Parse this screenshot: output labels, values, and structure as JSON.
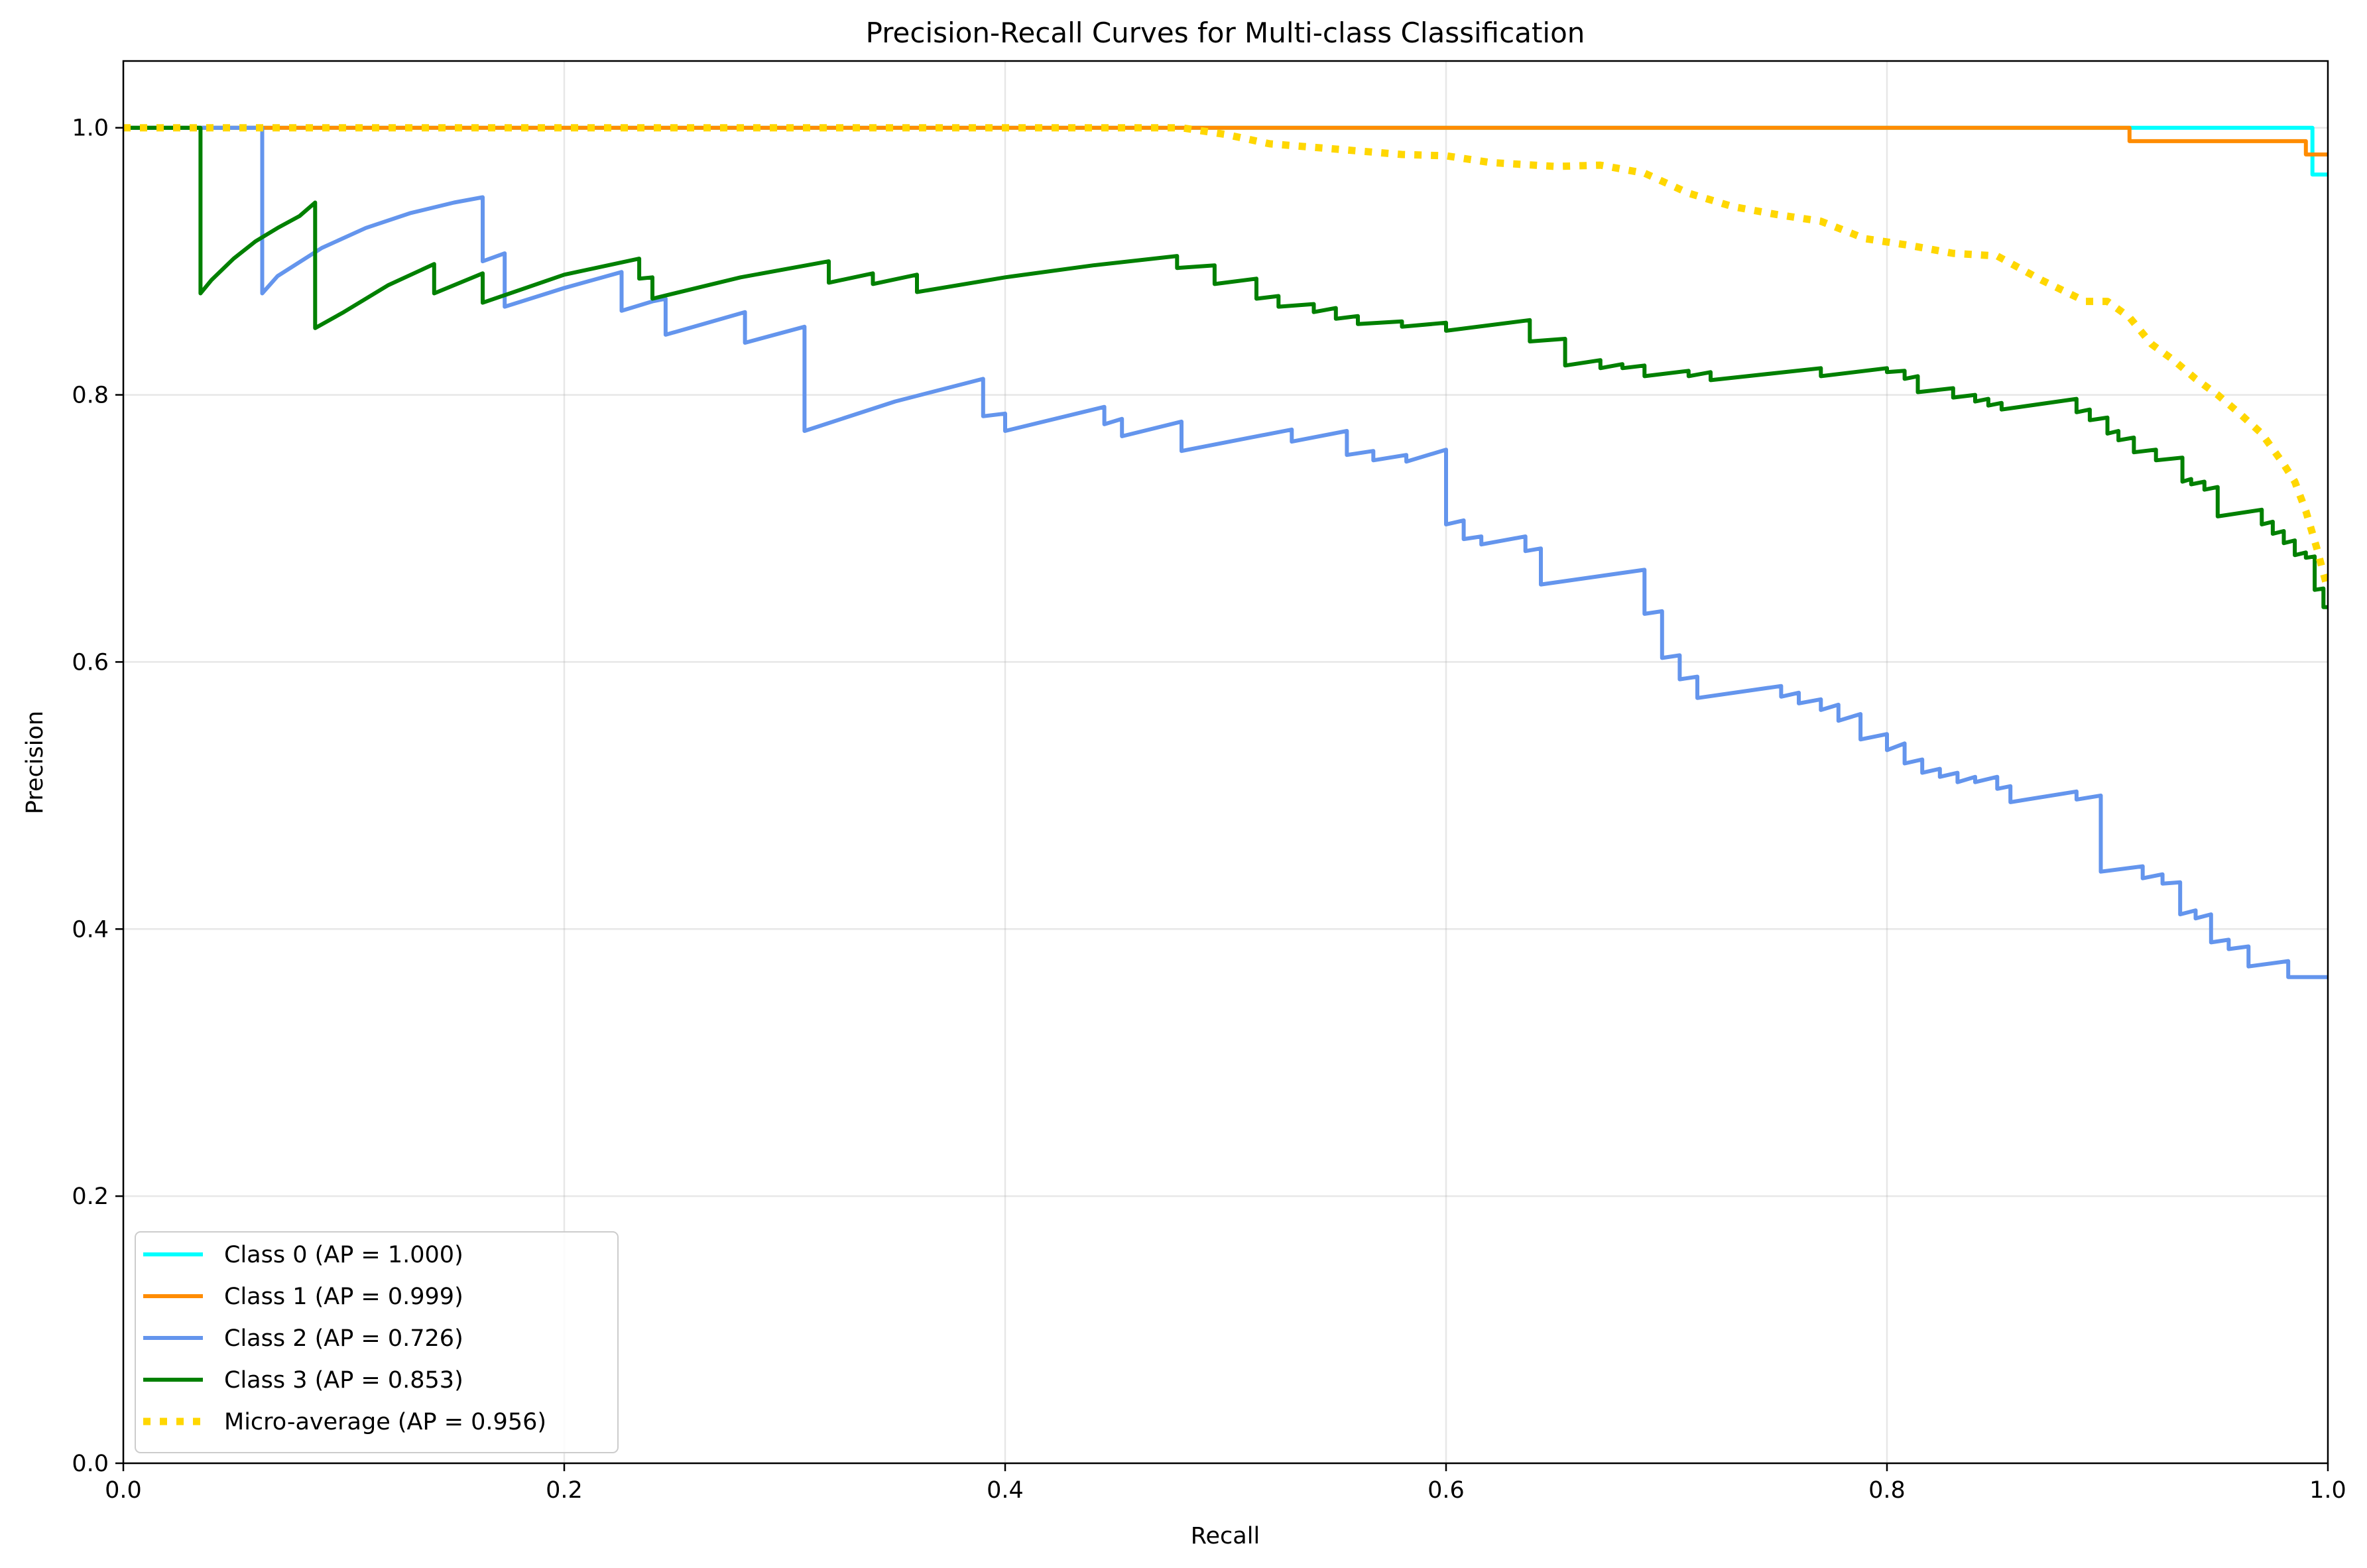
{
  "chart_data": {
    "type": "line",
    "title": "Precision-Recall Curves for Multi-class Classification",
    "xlabel": "Recall",
    "ylabel": "Precision",
    "xlim": [
      0,
      1
    ],
    "ylim": [
      0,
      1.05
    ],
    "x_ticks": [
      {
        "value": 0.0,
        "label": "0.0"
      },
      {
        "value": 0.2,
        "label": "0.2"
      },
      {
        "value": 0.4,
        "label": "0.4"
      },
      {
        "value": 0.6,
        "label": "0.6"
      },
      {
        "value": 0.8,
        "label": "0.8"
      },
      {
        "value": 1.0,
        "label": "1.0"
      }
    ],
    "y_ticks": [
      {
        "value": 0.0,
        "label": "0.0"
      },
      {
        "value": 0.2,
        "label": "0.2"
      },
      {
        "value": 0.4,
        "label": "0.4"
      },
      {
        "value": 0.6,
        "label": "0.6"
      },
      {
        "value": 0.8,
        "label": "0.8"
      },
      {
        "value": 1.0,
        "label": "1.0"
      }
    ],
    "grid": true,
    "legend_position": "lower-left",
    "series": [
      {
        "name": "Class 0 (AP = 1.000)",
        "color": "#00ffff",
        "style": "solid",
        "points": [
          [
            0.0,
            1.0
          ],
          [
            0.993,
            1.0
          ],
          [
            0.993,
            0.965
          ],
          [
            1.0,
            0.965
          ]
        ]
      },
      {
        "name": "Class 1 (AP = 0.999)",
        "color": "#ff8c00",
        "style": "solid",
        "points": [
          [
            0.0,
            1.0
          ],
          [
            0.91,
            1.0
          ],
          [
            0.91,
            0.99
          ],
          [
            0.99,
            0.99
          ],
          [
            0.99,
            0.98
          ],
          [
            1.0,
            0.98
          ]
        ]
      },
      {
        "name": "Class 2 (AP = 0.726)",
        "color": "#6495ed",
        "style": "solid",
        "points": [
          [
            0.0,
            1.0
          ],
          [
            0.063,
            1.0
          ],
          [
            0.063,
            0.876
          ],
          [
            0.07,
            0.889
          ],
          [
            0.09,
            0.91
          ],
          [
            0.11,
            0.925
          ],
          [
            0.13,
            0.936
          ],
          [
            0.15,
            0.944
          ],
          [
            0.163,
            0.948
          ],
          [
            0.163,
            0.9
          ],
          [
            0.173,
            0.906
          ],
          [
            0.173,
            0.866
          ],
          [
            0.2,
            0.88
          ],
          [
            0.226,
            0.892
          ],
          [
            0.226,
            0.863
          ],
          [
            0.24,
            0.87
          ],
          [
            0.246,
            0.872
          ],
          [
            0.246,
            0.845
          ],
          [
            0.282,
            0.862
          ],
          [
            0.282,
            0.839
          ],
          [
            0.309,
            0.851
          ],
          [
            0.309,
            0.773
          ],
          [
            0.35,
            0.795
          ],
          [
            0.39,
            0.812
          ],
          [
            0.39,
            0.784
          ],
          [
            0.4,
            0.786
          ],
          [
            0.4,
            0.773
          ],
          [
            0.445,
            0.791
          ],
          [
            0.445,
            0.778
          ],
          [
            0.453,
            0.782
          ],
          [
            0.453,
            0.769
          ],
          [
            0.48,
            0.78
          ],
          [
            0.48,
            0.758
          ],
          [
            0.53,
            0.774
          ],
          [
            0.53,
            0.765
          ],
          [
            0.555,
            0.773
          ],
          [
            0.555,
            0.755
          ],
          [
            0.567,
            0.758
          ],
          [
            0.567,
            0.751
          ],
          [
            0.582,
            0.755
          ],
          [
            0.582,
            0.75
          ],
          [
            0.6,
            0.759
          ],
          [
            0.6,
            0.703
          ],
          [
            0.608,
            0.706
          ],
          [
            0.608,
            0.692
          ],
          [
            0.616,
            0.694
          ],
          [
            0.616,
            0.688
          ],
          [
            0.636,
            0.694
          ],
          [
            0.636,
            0.683
          ],
          [
            0.643,
            0.685
          ],
          [
            0.643,
            0.658
          ],
          [
            0.69,
            0.669
          ],
          [
            0.69,
            0.636
          ],
          [
            0.698,
            0.638
          ],
          [
            0.698,
            0.603
          ],
          [
            0.706,
            0.605
          ],
          [
            0.706,
            0.587
          ],
          [
            0.714,
            0.589
          ],
          [
            0.714,
            0.573
          ],
          [
            0.752,
            0.582
          ],
          [
            0.752,
            0.574
          ],
          [
            0.76,
            0.577
          ],
          [
            0.76,
            0.569
          ],
          [
            0.77,
            0.572
          ],
          [
            0.77,
            0.564
          ],
          [
            0.778,
            0.568
          ],
          [
            0.778,
            0.556
          ],
          [
            0.788,
            0.561
          ],
          [
            0.788,
            0.542
          ],
          [
            0.8,
            0.546
          ],
          [
            0.8,
            0.534
          ],
          [
            0.808,
            0.539
          ],
          [
            0.808,
            0.524
          ],
          [
            0.816,
            0.527
          ],
          [
            0.816,
            0.517
          ],
          [
            0.824,
            0.52
          ],
          [
            0.824,
            0.514
          ],
          [
            0.832,
            0.517
          ],
          [
            0.832,
            0.51
          ],
          [
            0.84,
            0.514
          ],
          [
            0.84,
            0.51
          ],
          [
            0.85,
            0.514
          ],
          [
            0.85,
            0.505
          ],
          [
            0.856,
            0.507
          ],
          [
            0.856,
            0.495
          ],
          [
            0.886,
            0.503
          ],
          [
            0.886,
            0.497
          ],
          [
            0.897,
            0.5
          ],
          [
            0.897,
            0.443
          ],
          [
            0.916,
            0.447
          ],
          [
            0.916,
            0.438
          ],
          [
            0.925,
            0.441
          ],
          [
            0.925,
            0.434
          ],
          [
            0.933,
            0.435
          ],
          [
            0.933,
            0.411
          ],
          [
            0.94,
            0.414
          ],
          [
            0.94,
            0.408
          ],
          [
            0.947,
            0.411
          ],
          [
            0.947,
            0.39
          ],
          [
            0.955,
            0.392
          ],
          [
            0.955,
            0.385
          ],
          [
            0.964,
            0.387
          ],
          [
            0.964,
            0.372
          ],
          [
            0.982,
            0.376
          ],
          [
            0.982,
            0.364
          ],
          [
            1.0,
            0.364
          ]
        ]
      },
      {
        "name": "Class 3 (AP = 0.853)",
        "color": "#008000",
        "style": "solid",
        "points": [
          [
            0.0,
            1.0
          ],
          [
            0.035,
            1.0
          ],
          [
            0.035,
            0.876
          ],
          [
            0.04,
            0.886
          ],
          [
            0.05,
            0.902
          ],
          [
            0.06,
            0.915
          ],
          [
            0.07,
            0.925
          ],
          [
            0.08,
            0.934
          ],
          [
            0.087,
            0.944
          ],
          [
            0.087,
            0.85
          ],
          [
            0.1,
            0.862
          ],
          [
            0.12,
            0.882
          ],
          [
            0.141,
            0.898
          ],
          [
            0.141,
            0.876
          ],
          [
            0.163,
            0.891
          ],
          [
            0.163,
            0.869
          ],
          [
            0.2,
            0.89
          ],
          [
            0.234,
            0.902
          ],
          [
            0.234,
            0.887
          ],
          [
            0.24,
            0.888
          ],
          [
            0.24,
            0.872
          ],
          [
            0.28,
            0.888
          ],
          [
            0.32,
            0.9
          ],
          [
            0.32,
            0.884
          ],
          [
            0.34,
            0.891
          ],
          [
            0.34,
            0.883
          ],
          [
            0.36,
            0.89
          ],
          [
            0.36,
            0.877
          ],
          [
            0.4,
            0.888
          ],
          [
            0.44,
            0.897
          ],
          [
            0.478,
            0.904
          ],
          [
            0.478,
            0.895
          ],
          [
            0.495,
            0.897
          ],
          [
            0.495,
            0.883
          ],
          [
            0.514,
            0.887
          ],
          [
            0.514,
            0.872
          ],
          [
            0.524,
            0.874
          ],
          [
            0.524,
            0.866
          ],
          [
            0.54,
            0.868
          ],
          [
            0.54,
            0.862
          ],
          [
            0.55,
            0.865
          ],
          [
            0.55,
            0.857
          ],
          [
            0.56,
            0.859
          ],
          [
            0.56,
            0.853
          ],
          [
            0.58,
            0.855
          ],
          [
            0.58,
            0.851
          ],
          [
            0.6,
            0.854
          ],
          [
            0.6,
            0.848
          ],
          [
            0.638,
            0.856
          ],
          [
            0.638,
            0.84
          ],
          [
            0.654,
            0.842
          ],
          [
            0.654,
            0.822
          ],
          [
            0.67,
            0.826
          ],
          [
            0.67,
            0.82
          ],
          [
            0.68,
            0.823
          ],
          [
            0.68,
            0.82
          ],
          [
            0.69,
            0.822
          ],
          [
            0.69,
            0.814
          ],
          [
            0.71,
            0.818
          ],
          [
            0.71,
            0.814
          ],
          [
            0.72,
            0.817
          ],
          [
            0.72,
            0.811
          ],
          [
            0.77,
            0.82
          ],
          [
            0.77,
            0.814
          ],
          [
            0.8,
            0.82
          ],
          [
            0.8,
            0.817
          ],
          [
            0.808,
            0.818
          ],
          [
            0.808,
            0.812
          ],
          [
            0.814,
            0.814
          ],
          [
            0.814,
            0.802
          ],
          [
            0.83,
            0.805
          ],
          [
            0.83,
            0.798
          ],
          [
            0.84,
            0.8
          ],
          [
            0.84,
            0.795
          ],
          [
            0.846,
            0.797
          ],
          [
            0.846,
            0.792
          ],
          [
            0.852,
            0.794
          ],
          [
            0.852,
            0.789
          ],
          [
            0.886,
            0.797
          ],
          [
            0.886,
            0.787
          ],
          [
            0.892,
            0.789
          ],
          [
            0.892,
            0.781
          ],
          [
            0.9,
            0.783
          ],
          [
            0.9,
            0.771
          ],
          [
            0.905,
            0.773
          ],
          [
            0.905,
            0.766
          ],
          [
            0.912,
            0.768
          ],
          [
            0.912,
            0.757
          ],
          [
            0.922,
            0.759
          ],
          [
            0.922,
            0.751
          ],
          [
            0.934,
            0.753
          ],
          [
            0.934,
            0.735
          ],
          [
            0.938,
            0.737
          ],
          [
            0.938,
            0.733
          ],
          [
            0.944,
            0.735
          ],
          [
            0.944,
            0.729
          ],
          [
            0.95,
            0.731
          ],
          [
            0.95,
            0.709
          ],
          [
            0.97,
            0.714
          ],
          [
            0.97,
            0.703
          ],
          [
            0.975,
            0.705
          ],
          [
            0.975,
            0.696
          ],
          [
            0.98,
            0.698
          ],
          [
            0.98,
            0.689
          ],
          [
            0.985,
            0.691
          ],
          [
            0.985,
            0.68
          ],
          [
            0.99,
            0.682
          ],
          [
            0.99,
            0.678
          ],
          [
            0.994,
            0.679
          ],
          [
            0.994,
            0.654
          ],
          [
            0.998,
            0.655
          ],
          [
            0.998,
            0.641
          ],
          [
            1.0,
            0.641
          ]
        ]
      },
      {
        "name": "Micro-average (AP = 0.956)",
        "color": "#ffd700",
        "style": "dotted",
        "points": [
          [
            0.0,
            1.0
          ],
          [
            0.48,
            1.0
          ],
          [
            0.5,
            0.995
          ],
          [
            0.52,
            0.988
          ],
          [
            0.55,
            0.984
          ],
          [
            0.58,
            0.98
          ],
          [
            0.6,
            0.979
          ],
          [
            0.62,
            0.974
          ],
          [
            0.65,
            0.971
          ],
          [
            0.67,
            0.972
          ],
          [
            0.69,
            0.966
          ],
          [
            0.71,
            0.951
          ],
          [
            0.73,
            0.941
          ],
          [
            0.75,
            0.935
          ],
          [
            0.77,
            0.93
          ],
          [
            0.79,
            0.917
          ],
          [
            0.81,
            0.912
          ],
          [
            0.83,
            0.906
          ],
          [
            0.85,
            0.904
          ],
          [
            0.87,
            0.886
          ],
          [
            0.89,
            0.87
          ],
          [
            0.9,
            0.87
          ],
          [
            0.91,
            0.858
          ],
          [
            0.92,
            0.838
          ],
          [
            0.93,
            0.826
          ],
          [
            0.94,
            0.812
          ],
          [
            0.95,
            0.8
          ],
          [
            0.96,
            0.786
          ],
          [
            0.97,
            0.771
          ],
          [
            0.98,
            0.748
          ],
          [
            0.985,
            0.735
          ],
          [
            0.99,
            0.713
          ],
          [
            0.995,
            0.685
          ],
          [
            1.0,
            0.654
          ]
        ]
      }
    ]
  }
}
